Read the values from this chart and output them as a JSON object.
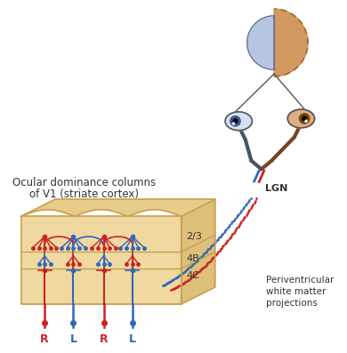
{
  "bg_color": "#ffffff",
  "cortex_face": "#f0d9a0",
  "cortex_side": "#dfc07a",
  "cortex_top": "#e8cc8a",
  "cortex_edge": "#c8a050",
  "red_color": "#cc2222",
  "blue_color": "#3366bb",
  "eye_blue_fill": "#b8ccee",
  "eye_brown_fill": "#cc7733",
  "iris_blue": "#445588",
  "iris_brown": "#774411",
  "vf_blue": "#aabbdd",
  "vf_brown": "#cc8844",
  "text_color": "#333333",
  "lgn_color": "#ffffff",
  "nerve_dark": "#334455",
  "label_ocular": "Ocular dominance columns",
  "label_of": "of V1 (striate cortex)",
  "label_23": "2/3",
  "label_4b": "4B",
  "label_4c": "4C",
  "label_lgn": "LGN",
  "label_perivent": "Periventricular\nwhite matter\nprojections",
  "col_labels": [
    "R",
    "L",
    "R",
    "L"
  ],
  "col_colors": [
    "red",
    "blue",
    "red",
    "blue"
  ]
}
